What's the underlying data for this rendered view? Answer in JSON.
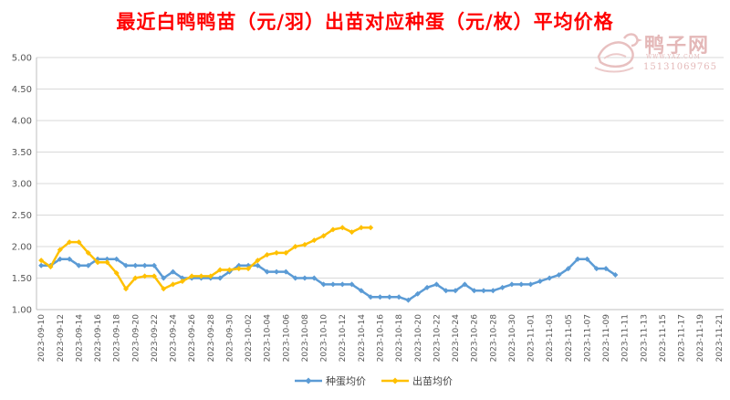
{
  "title": "最近白鸭鸭苗（元/羽）出苗对应种蛋（元/枚）平均价格",
  "watermark": {
    "name": "鸭子网",
    "url": "WWW.YAZ.COM",
    "phone": "15131069765"
  },
  "colors": {
    "title": "#ff0000",
    "egg_series": "#5b9bd5",
    "chick_series": "#ffc000",
    "grid": "#d9d9d9"
  },
  "chart_data": {
    "type": "line",
    "title": "最近白鸭鸭苗（元/羽）出苗对应种蛋（元/枚）平均价格",
    "xlabel": "",
    "ylabel": "",
    "ylim": [
      1.0,
      5.0
    ],
    "yticks": [
      "1.00",
      "1.50",
      "2.00",
      "2.50",
      "3.00",
      "3.50",
      "4.00",
      "4.50",
      "5.00"
    ],
    "grid": true,
    "legend_position": "bottom",
    "x": [
      "2023-09-10",
      "2023-09-11",
      "2023-09-12",
      "2023-09-13",
      "2023-09-14",
      "2023-09-15",
      "2023-09-16",
      "2023-09-17",
      "2023-09-18",
      "2023-09-19",
      "2023-09-20",
      "2023-09-21",
      "2023-09-22",
      "2023-09-23",
      "2023-09-24",
      "2023-09-25",
      "2023-09-26",
      "2023-09-27",
      "2023-09-28",
      "2023-09-29",
      "2023-09-30",
      "2023-10-01",
      "2023-10-02",
      "2023-10-03",
      "2023-10-04",
      "2023-10-05",
      "2023-10-06",
      "2023-10-07",
      "2023-10-08",
      "2023-10-09",
      "2023-10-10",
      "2023-10-11",
      "2023-10-12",
      "2023-10-13",
      "2023-10-14",
      "2023-10-15",
      "2023-10-16",
      "2023-10-17",
      "2023-10-18",
      "2023-10-19",
      "2023-10-20",
      "2023-10-21",
      "2023-10-22",
      "2023-10-23",
      "2023-10-24",
      "2023-10-25",
      "2023-10-26",
      "2023-10-27",
      "2023-10-28",
      "2023-10-29",
      "2023-10-30",
      "2023-10-31",
      "2023-11-01",
      "2023-11-02",
      "2023-11-03",
      "2023-11-04",
      "2023-11-05",
      "2023-11-06",
      "2023-11-07",
      "2023-11-08",
      "2023-11-09",
      "2023-11-10",
      "2023-11-11",
      "2023-11-12",
      "2023-11-13",
      "2023-11-14",
      "2023-11-15",
      "2023-11-16",
      "2023-11-17",
      "2023-11-18",
      "2023-11-19",
      "2023-11-20",
      "2023-11-21"
    ],
    "x_tick_labels": [
      "2023-09-10",
      "2023-09-12",
      "2023-09-14",
      "2023-09-16",
      "2023-09-18",
      "2023-09-20",
      "2023-09-22",
      "2023-09-24",
      "2023-09-26",
      "2023-09-28",
      "2023-09-30",
      "2023-10-02",
      "2023-10-04",
      "2023-10-06",
      "2023-10-08",
      "2023-10-10",
      "2023-10-12",
      "2023-10-14",
      "2023-10-16",
      "2023-10-18",
      "2023-10-20",
      "2023-10-22",
      "2023-10-24",
      "2023-10-26",
      "2023-10-28",
      "2023-10-30",
      "2023-11-01",
      "2023-11-03",
      "2023-11-05",
      "2023-11-07",
      "2023-11-09",
      "2023-11-11",
      "2023-11-13",
      "2023-11-15",
      "2023-11-17",
      "2023-11-19",
      "2023-11-21"
    ],
    "series": [
      {
        "name": "种蛋均价",
        "color": "#5b9bd5",
        "marker": "diamond",
        "values": [
          1.7,
          1.7,
          1.8,
          1.8,
          1.7,
          1.7,
          1.8,
          1.8,
          1.8,
          1.7,
          1.7,
          1.7,
          1.7,
          1.5,
          1.6,
          1.5,
          1.5,
          1.5,
          1.5,
          1.5,
          1.6,
          1.7,
          1.7,
          1.7,
          1.6,
          1.6,
          1.6,
          1.5,
          1.5,
          1.5,
          1.4,
          1.4,
          1.4,
          1.4,
          1.3,
          1.2,
          1.2,
          1.2,
          1.2,
          1.15,
          1.25,
          1.35,
          1.4,
          1.3,
          1.3,
          1.4,
          1.3,
          1.3,
          1.3,
          1.35,
          1.4,
          1.4,
          1.4,
          1.45,
          1.5,
          1.55,
          1.65,
          1.8,
          1.8,
          1.65,
          1.65,
          1.55,
          null,
          null,
          null,
          null,
          null,
          null,
          null,
          null,
          null,
          null,
          null
        ]
      },
      {
        "name": "出苗均价",
        "color": "#ffc000",
        "marker": "diamond",
        "values": [
          1.78,
          1.68,
          1.95,
          2.07,
          2.07,
          1.9,
          1.75,
          1.75,
          1.58,
          1.33,
          1.5,
          1.53,
          1.53,
          1.33,
          1.4,
          1.45,
          1.53,
          1.53,
          1.53,
          1.63,
          1.63,
          1.65,
          1.65,
          1.78,
          1.87,
          1.9,
          1.9,
          2.0,
          2.03,
          2.1,
          2.17,
          2.27,
          2.3,
          2.23,
          2.3,
          2.3,
          null,
          null,
          null,
          null,
          null,
          null,
          null,
          null,
          null,
          null,
          null,
          null,
          null,
          null,
          null,
          null,
          null,
          null,
          null,
          null,
          null,
          null,
          null,
          null,
          null,
          null,
          null,
          null,
          null,
          null,
          null,
          null,
          null,
          null,
          null,
          null,
          null
        ]
      }
    ]
  }
}
